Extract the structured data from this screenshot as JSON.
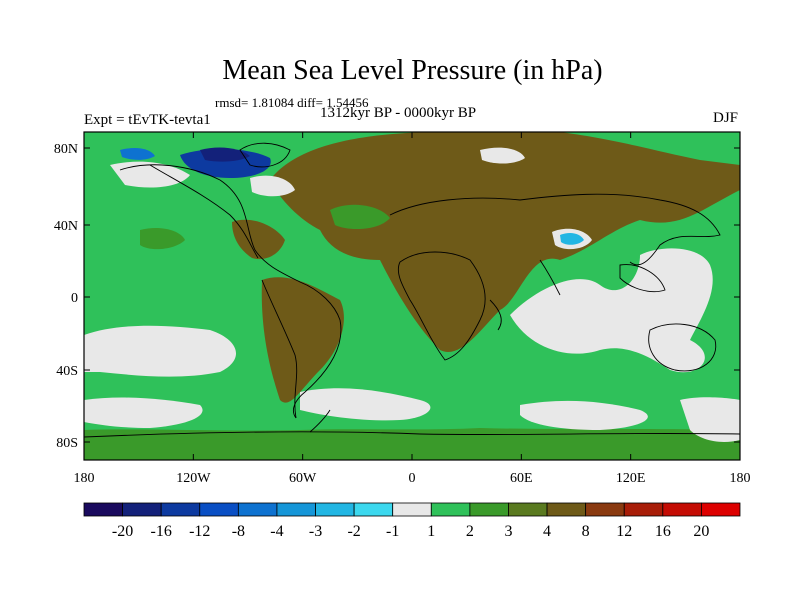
{
  "title": "Mean Sea Level Pressure (in hPa)",
  "stats_line": "rmsd= 1.81084 diff= 1.54456",
  "subtitle": "1312kyr BP - 0000kyr BP",
  "experiment": "Expt = tEvTK-tevta1",
  "season": "DJF",
  "lat_labels": [
    "80N",
    "40N",
    "0",
    "40S",
    "80S"
  ],
  "lon_labels": [
    "180",
    "120W",
    "60W",
    "0",
    "60E",
    "120E",
    "180"
  ],
  "colorbar": {
    "labels": [
      "-20",
      "-16",
      "-12",
      "-8",
      "-4",
      "-3",
      "-2",
      "-1",
      "1",
      "2",
      "3",
      "4",
      "8",
      "12",
      "16",
      "20"
    ],
    "colors": [
      "#1a0a5e",
      "#13217a",
      "#0d3aa0",
      "#0a4fc4",
      "#0e72d0",
      "#1596d8",
      "#22b6e3",
      "#3cd8ee",
      "#e8e8e8",
      "#2fc15a",
      "#3a9a2a",
      "#5a7a20",
      "#6e5a18",
      "#8a3a10",
      "#a81d08",
      "#c40c04",
      "#dd0000"
    ]
  },
  "map_colors": {
    "positive_small": "#2fc15a",
    "near_zero": "#e8e8e8",
    "positive_mid": "#6e5a18",
    "negative": "#0d3aa0"
  }
}
